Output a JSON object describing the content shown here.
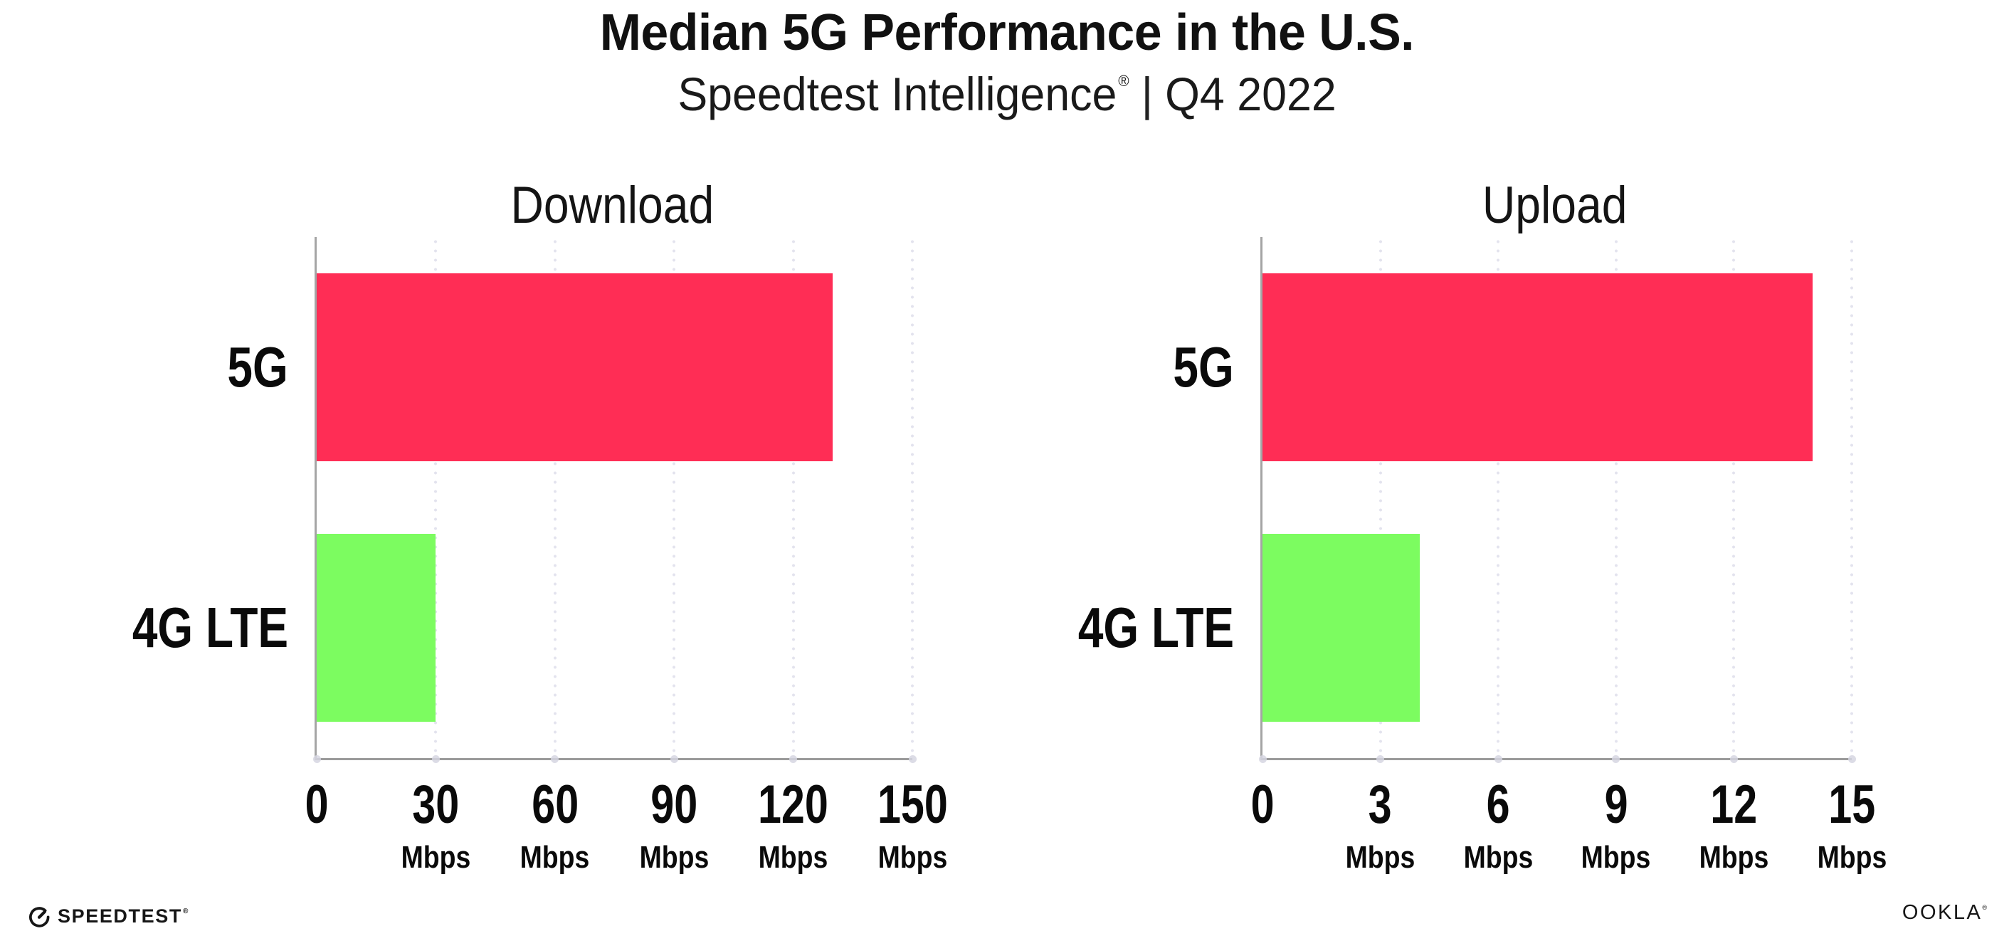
{
  "header": {
    "title": "Median 5G Performance in the U.S.",
    "subtitle": {
      "brand": "Speedtest Intelligence",
      "reg": "®",
      "separator": "|",
      "period": "Q4 2022"
    }
  },
  "chart_data": [
    {
      "type": "bar",
      "orientation": "horizontal",
      "title": "Download",
      "categories": [
        "5G",
        "4G LTE"
      ],
      "values": [
        130,
        30
      ],
      "unit": "Mbps",
      "xlabel": "",
      "ylabel": "",
      "xlim": [
        0,
        150
      ],
      "xticks": [
        0,
        30,
        60,
        90,
        120,
        150
      ],
      "bar_colors": [
        "#ff2d55",
        "#7cfc60"
      ],
      "grid": "dotted vertical gridlines at each tick",
      "legend": "none"
    },
    {
      "type": "bar",
      "orientation": "horizontal",
      "title": "Upload",
      "categories": [
        "5G",
        "4G LTE"
      ],
      "values": [
        14,
        4
      ],
      "unit": "Mbps",
      "xlabel": "",
      "ylabel": "",
      "xlim": [
        0,
        15
      ],
      "xticks": [
        0,
        3,
        6,
        9,
        12,
        15
      ],
      "bar_colors": [
        "#ff2d55",
        "#7cfc60"
      ],
      "grid": "dotted vertical gridlines at each tick",
      "legend": "none"
    }
  ],
  "footer": {
    "speedtest": {
      "label": "SPEEDTEST",
      "reg": "®"
    },
    "ookla": {
      "label": "OOKLA",
      "reg": "®"
    }
  },
  "colors": {
    "bar_5g": "#ff2d55",
    "bar_4g_lte": "#7cfc60",
    "axis": "#9b9b9b",
    "gridline": "#e3e3ee",
    "text": "#111111",
    "background": "#ffffff"
  }
}
